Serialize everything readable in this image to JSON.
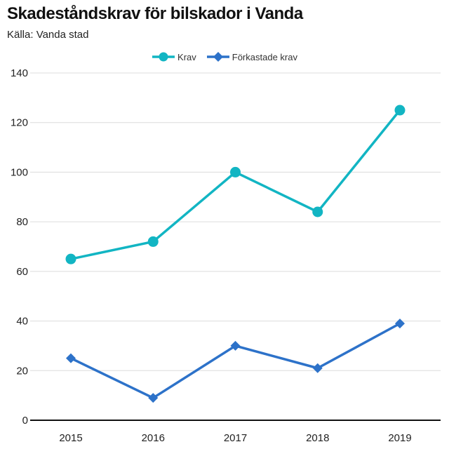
{
  "header": {
    "title": "Skadeståndskrav för bilskador i Vanda",
    "subtitle": "Källa: Vanda stad"
  },
  "chart_data": {
    "type": "line",
    "title": "Skadeståndskrav för bilskador i Vanda",
    "subtitle": "Källa: Vanda stad",
    "xlabel": "",
    "ylabel": "",
    "categories": [
      "2015",
      "2016",
      "2017",
      "2018",
      "2019"
    ],
    "series": [
      {
        "name": "Krav",
        "values": [
          65,
          72,
          100,
          84,
          125
        ],
        "color": "#12b5c3",
        "marker": "circle"
      },
      {
        "name": "Förkastade krav",
        "values": [
          25,
          9,
          30,
          21,
          39
        ],
        "color": "#2d72c9",
        "marker": "diamond"
      }
    ],
    "ylim": [
      0,
      140
    ],
    "yticks": [
      0,
      20,
      40,
      60,
      80,
      100,
      120,
      140
    ],
    "grid": true,
    "legend_position": "top-center"
  }
}
